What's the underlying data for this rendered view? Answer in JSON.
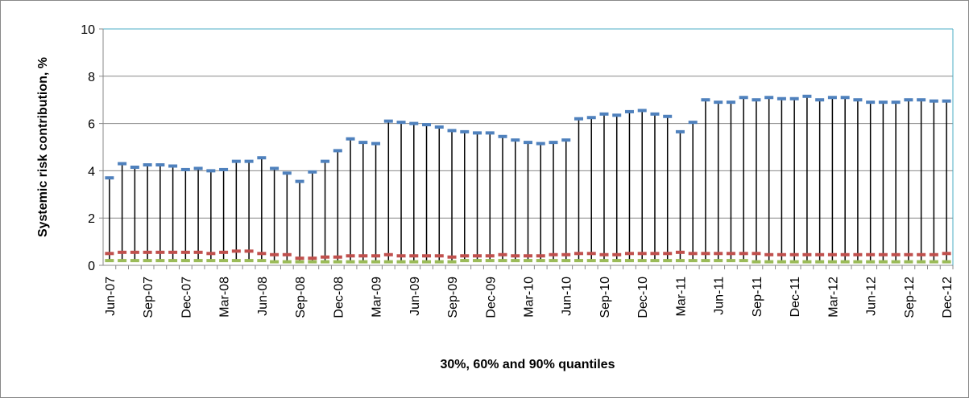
{
  "chart_data": {
    "type": "hilo",
    "y_label": "Systemic risk contribution, %",
    "x_label": "30%, 60% and 90% quantiles",
    "categories": [
      "Jun-07",
      null,
      null,
      "Sep-07",
      null,
      null,
      "Dec-07",
      null,
      null,
      "Mar-08",
      null,
      null,
      "Jun-08",
      null,
      null,
      "Sep-08",
      null,
      null,
      "Dec-08",
      null,
      null,
      "Mar-09",
      null,
      null,
      "Jun-09",
      null,
      null,
      "Sep-09",
      null,
      null,
      "Dec-09",
      null,
      null,
      "Mar-10",
      null,
      null,
      "Jun-10",
      null,
      null,
      "Sep-10",
      null,
      null,
      "Dec-10",
      null,
      null,
      "Mar-11",
      null,
      null,
      "Jun-11",
      null,
      null,
      "Sep-11",
      null,
      null,
      "Dec-11",
      null,
      null,
      "Mar-12",
      null,
      null,
      "Jun-12",
      null,
      null,
      "Sep-12",
      null,
      null,
      "Dec-12"
    ],
    "series": [
      {
        "color": "#4f81bd",
        "values": [
          3.7,
          4.3,
          4.15,
          4.25,
          4.25,
          4.2,
          4.05,
          4.1,
          4.0,
          4.05,
          4.4,
          4.4,
          4.55,
          4.1,
          3.9,
          3.55,
          3.95,
          4.4,
          4.85,
          5.35,
          5.2,
          5.15,
          6.1,
          6.05,
          6.0,
          5.95,
          5.85,
          5.7,
          5.65,
          5.6,
          5.6,
          5.45,
          5.3,
          5.2,
          5.15,
          5.2,
          5.3,
          6.2,
          6.25,
          6.4,
          6.35,
          6.5,
          6.55,
          6.4,
          6.3,
          5.65,
          6.05,
          7.0,
          6.9,
          6.9,
          7.1,
          7.0,
          7.1,
          7.05,
          7.05,
          7.15,
          7.0,
          7.1,
          7.1,
          7.0,
          6.9,
          6.9,
          6.9,
          7.0,
          7.0,
          6.95,
          6.95
        ]
      },
      {
        "color": "#c0504d",
        "values": [
          0.5,
          0.55,
          0.55,
          0.55,
          0.55,
          0.55,
          0.55,
          0.55,
          0.5,
          0.55,
          0.6,
          0.6,
          0.5,
          0.45,
          0.45,
          0.3,
          0.3,
          0.35,
          0.35,
          0.4,
          0.4,
          0.4,
          0.45,
          0.4,
          0.4,
          0.4,
          0.4,
          0.35,
          0.4,
          0.4,
          0.4,
          0.45,
          0.4,
          0.4,
          0.4,
          0.45,
          0.45,
          0.5,
          0.5,
          0.45,
          0.45,
          0.5,
          0.5,
          0.5,
          0.5,
          0.55,
          0.5,
          0.5,
          0.5,
          0.5,
          0.5,
          0.5,
          0.45,
          0.45,
          0.45,
          0.45,
          0.45,
          0.45,
          0.45,
          0.45,
          0.45,
          0.45,
          0.45,
          0.45,
          0.45,
          0.45,
          0.5
        ]
      },
      {
        "color": "#9bbb59",
        "values": [
          0.2,
          0.2,
          0.2,
          0.2,
          0.2,
          0.2,
          0.2,
          0.2,
          0.2,
          0.2,
          0.2,
          0.2,
          0.2,
          0.15,
          0.15,
          0.15,
          0.15,
          0.15,
          0.15,
          0.15,
          0.15,
          0.15,
          0.15,
          0.15,
          0.15,
          0.15,
          0.15,
          0.15,
          0.2,
          0.2,
          0.2,
          0.2,
          0.2,
          0.2,
          0.2,
          0.2,
          0.2,
          0.2,
          0.2,
          0.2,
          0.2,
          0.2,
          0.2,
          0.2,
          0.2,
          0.2,
          0.2,
          0.2,
          0.2,
          0.2,
          0.2,
          0.15,
          0.15,
          0.15,
          0.15,
          0.15,
          0.15,
          0.15,
          0.15,
          0.15,
          0.15,
          0.15,
          0.15,
          0.15,
          0.15,
          0.15,
          0.15
        ]
      }
    ],
    "ylim": [
      0,
      10
    ],
    "yticks": [
      0,
      2,
      4,
      6,
      8,
      10
    ],
    "grid": true
  }
}
